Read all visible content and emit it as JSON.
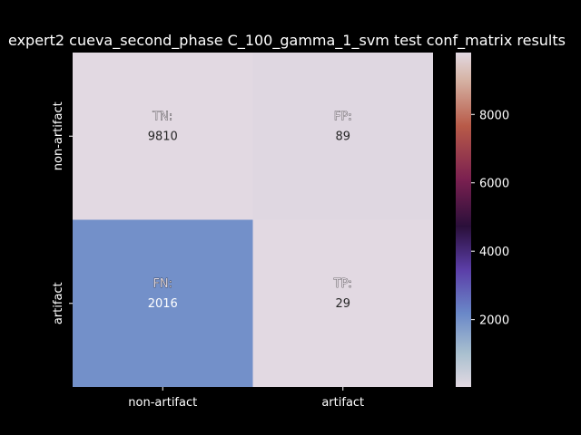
{
  "chart_data": {
    "type": "heatmap",
    "title": "expert2 cueva_second_phase C_100_gamma_1_svm test conf_matrix results",
    "x_categories": [
      "non-artifact",
      "artifact"
    ],
    "y_categories": [
      "non-artifact",
      "artifact"
    ],
    "cells": [
      [
        {
          "label": "TN:",
          "value": 9810
        },
        {
          "label": "FP:",
          "value": 89
        }
      ],
      [
        {
          "label": "FN:",
          "value": 2016
        },
        {
          "label": "TP:",
          "value": 29
        }
      ]
    ],
    "colorbar": {
      "vmin": 29,
      "vmax": 9810,
      "ticks": [
        2000,
        4000,
        6000,
        8000
      ],
      "colormap": "twilight",
      "colors": {
        "low": "#e2d9e2",
        "mid1": "#6f8fc8",
        "mid2": "#5b3ea8",
        "mid3": "#2a0f3a",
        "mid4": "#7a2050",
        "mid5": "#b85a48",
        "high": "#e2d9e2"
      }
    }
  }
}
